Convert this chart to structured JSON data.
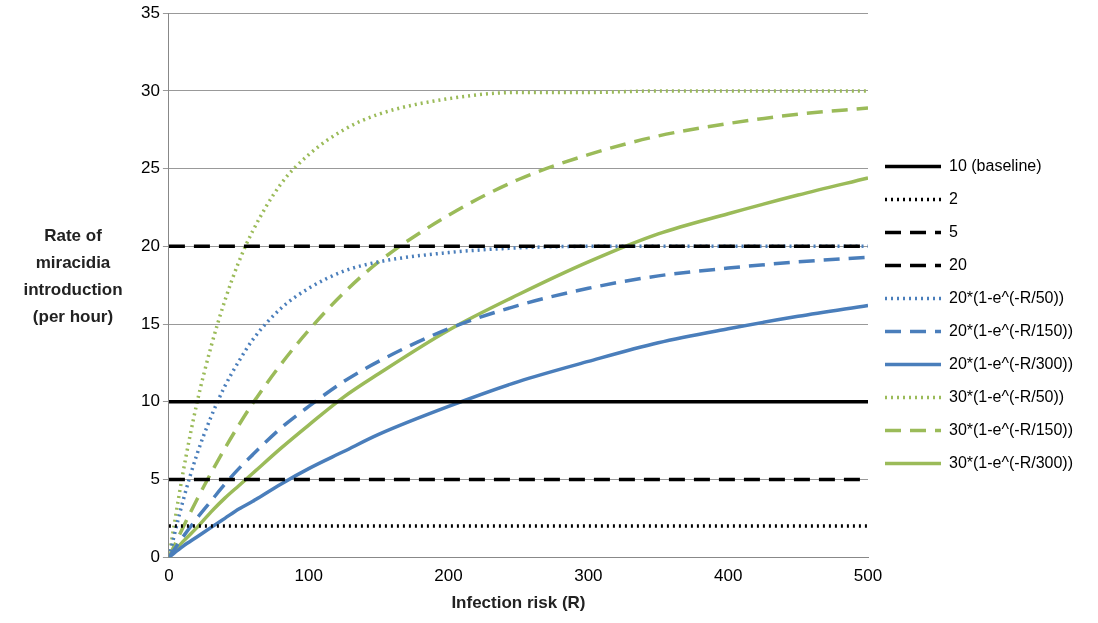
{
  "chart_data": {
    "type": "line",
    "xlabel": "Infection risk (R)",
    "ylabel": "Rate of miracidia introduction (per hour)",
    "xlim": [
      0,
      500
    ],
    "xticks": [
      0,
      100,
      200,
      300,
      400,
      500
    ],
    "ylim": [
      0,
      35
    ],
    "yticks": [
      0,
      5,
      10,
      15,
      20,
      25,
      30,
      35
    ],
    "grid": "y",
    "legend": "right",
    "marker": "none",
    "series": [
      {
        "name": "10 (baseline)",
        "color": "#000000",
        "line_style": "solid",
        "x": [
          0,
          500
        ],
        "values": [
          10,
          10
        ]
      },
      {
        "name": "2",
        "color": "#000000",
        "line_style": "dotted",
        "x": [
          0,
          500
        ],
        "values": [
          2,
          2
        ]
      },
      {
        "name": "5",
        "color": "#000000",
        "line_style": "dashed",
        "x": [
          0,
          500
        ],
        "values": [
          5,
          5
        ]
      },
      {
        "name": "20",
        "color": "#000000",
        "line_style": "dashed",
        "x": [
          0,
          500
        ],
        "values": [
          20,
          20
        ]
      },
      {
        "name": "20*(1-e^(-R/50))",
        "color": "#4a7ebb",
        "line_style": "dotted",
        "x": [
          0,
          10,
          20,
          30,
          40,
          50,
          60,
          80,
          100,
          125,
          150,
          200,
          250,
          300,
          350,
          400,
          450,
          500
        ],
        "values": [
          0,
          3.6,
          6.6,
          9.0,
          11.0,
          12.6,
          14.0,
          16.0,
          17.3,
          18.4,
          19.0,
          19.6,
          19.9,
          20.0,
          20.0,
          20.0,
          20.0,
          20.0
        ]
      },
      {
        "name": "20*(1-e^(-R/150))",
        "color": "#4a7ebb",
        "line_style": "dashed",
        "x": [
          0,
          10,
          20,
          30,
          40,
          50,
          60,
          80,
          100,
          125,
          150,
          200,
          250,
          300,
          350,
          400,
          450,
          500
        ],
        "values": [
          0,
          1.3,
          2.5,
          3.6,
          4.7,
          5.7,
          6.6,
          8.3,
          9.7,
          11.3,
          12.6,
          14.7,
          16.2,
          17.3,
          18.1,
          18.6,
          19.0,
          19.3
        ]
      },
      {
        "name": "20*(1-e^(-R/300))",
        "color": "#4a7ebb",
        "line_style": "solid",
        "x": [
          0,
          10,
          20,
          30,
          40,
          50,
          60,
          80,
          100,
          125,
          150,
          200,
          250,
          300,
          350,
          400,
          450,
          500
        ],
        "values": [
          0,
          0.7,
          1.3,
          1.9,
          2.5,
          3.1,
          3.6,
          4.7,
          5.7,
          6.8,
          7.9,
          9.7,
          11.3,
          12.6,
          13.8,
          14.7,
          15.5,
          16.2
        ]
      },
      {
        "name": "30*(1-e^(-R/50))",
        "color": "#9bbb59",
        "line_style": "dotted",
        "x": [
          0,
          10,
          20,
          30,
          40,
          50,
          60,
          80,
          100,
          125,
          150,
          200,
          250,
          300,
          350,
          400,
          450,
          500
        ],
        "values": [
          0,
          5.4,
          9.9,
          13.5,
          16.5,
          19.0,
          21.0,
          24.0,
          25.9,
          27.5,
          28.5,
          29.5,
          29.9,
          29.9,
          30,
          30,
          30,
          30
        ]
      },
      {
        "name": "30*(1-e^(-R/150))",
        "color": "#9bbb59",
        "line_style": "dashed",
        "x": [
          0,
          10,
          20,
          30,
          40,
          50,
          60,
          80,
          100,
          125,
          150,
          200,
          250,
          300,
          350,
          400,
          450,
          500
        ],
        "values": [
          0,
          1.9,
          3.7,
          5.4,
          7.0,
          8.5,
          9.9,
          12.4,
          14.6,
          17.0,
          19.0,
          22.0,
          24.3,
          25.9,
          27.1,
          27.9,
          28.5,
          28.9
        ]
      },
      {
        "name": "30*(1-e^(-R/300))",
        "color": "#9bbb59",
        "line_style": "solid",
        "x": [
          0,
          10,
          20,
          30,
          40,
          50,
          60,
          80,
          100,
          125,
          150,
          200,
          250,
          300,
          350,
          400,
          450,
          500
        ],
        "values": [
          0,
          1.0,
          1.9,
          2.9,
          3.8,
          4.6,
          5.4,
          7.0,
          8.5,
          10.3,
          11.8,
          14.6,
          16.9,
          19.0,
          20.8,
          22.1,
          23.3,
          24.4
        ]
      }
    ]
  }
}
